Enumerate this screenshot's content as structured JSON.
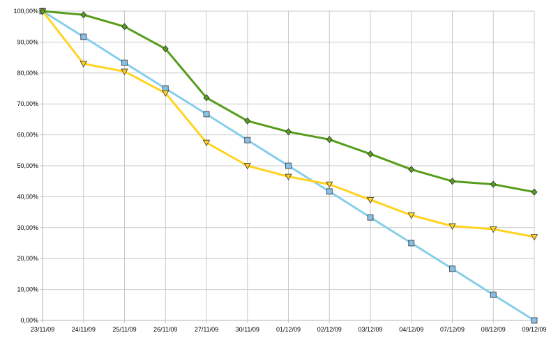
{
  "chart_data": {
    "type": "line",
    "categories": [
      "23/11/09",
      "24/11/09",
      "25/11/09",
      "26/11/09",
      "27/11/09",
      "30/11/09",
      "01/12/09",
      "02/12/09",
      "03/12/09",
      "04/12/09",
      "07/12/09",
      "08/12/09",
      "09/12/09"
    ],
    "yticks": [
      "0,00%",
      "10,00%",
      "20,00%",
      "30,00%",
      "40,00%",
      "50,00%",
      "60,00%",
      "70,00%",
      "80,00%",
      "90,00%",
      "100,00%"
    ],
    "ylim": [
      0,
      100
    ],
    "grid": true,
    "legend": "none",
    "series": [
      {
        "color": "#87ceeb",
        "marker_color": "#87bfe6",
        "marker": "square",
        "values": [
          100,
          91.7,
          83.3,
          75.0,
          66.7,
          58.3,
          50.0,
          41.7,
          33.3,
          25.0,
          16.7,
          8.3,
          0
        ]
      },
      {
        "color": "#ffd320",
        "marker_color": "#ffd320",
        "marker": "triangle-down",
        "values": [
          100,
          83.0,
          80.5,
          73.5,
          57.5,
          50.0,
          46.5,
          44.0,
          39.0,
          34.0,
          30.5,
          29.5,
          27.0
        ]
      },
      {
        "color": "#579d1c",
        "marker_color": "#579d1c",
        "marker": "diamond",
        "values": [
          100,
          98.8,
          95.0,
          87.8,
          72.0,
          64.5,
          61.0,
          58.5,
          53.8,
          48.8,
          45.0,
          44.0,
          41.5
        ]
      }
    ]
  }
}
